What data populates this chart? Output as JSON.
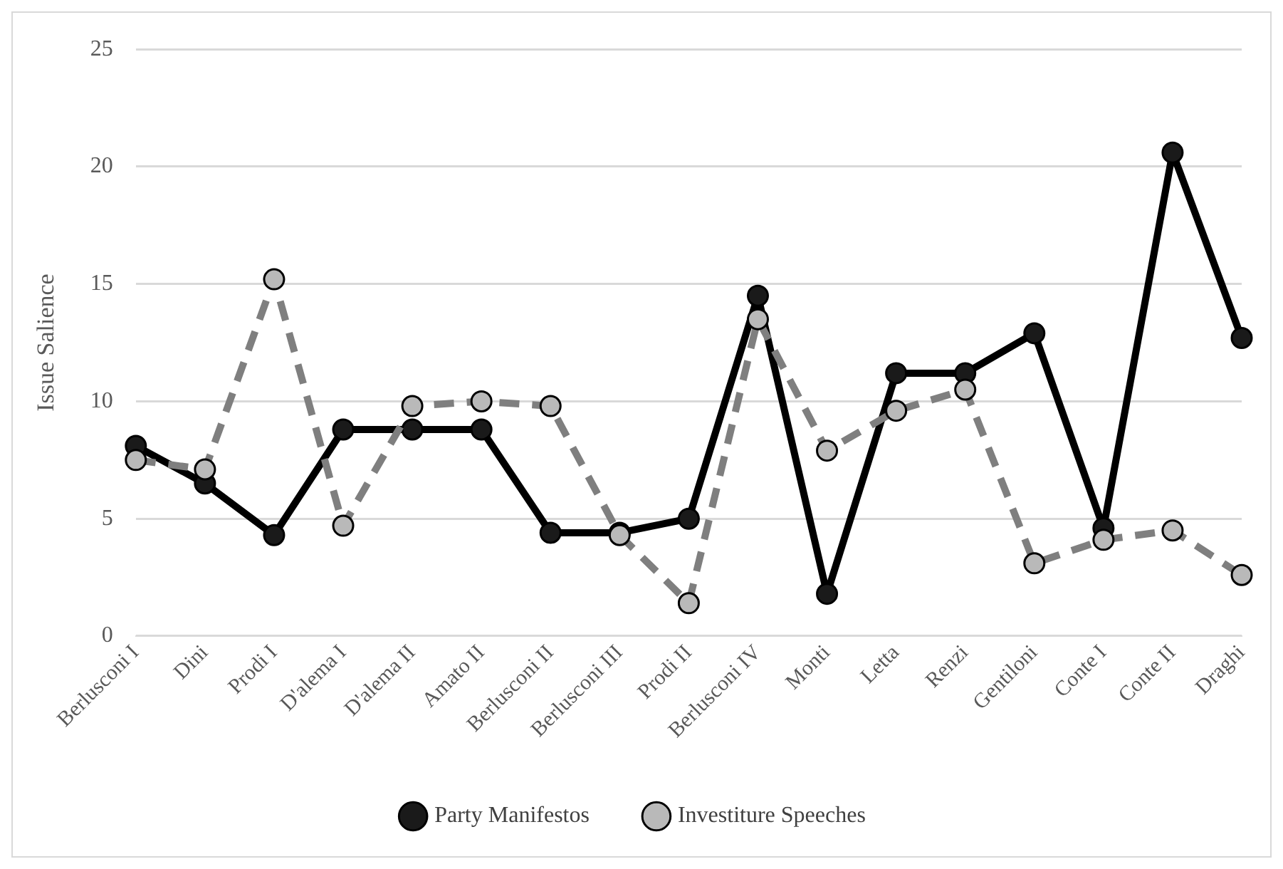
{
  "chart_data": {
    "type": "line",
    "ylabel": "Issue Salience",
    "categories": [
      "Berlusconi I",
      "Dini",
      "Prodi I",
      "D'alema I",
      "D'alema II",
      "Amato II",
      "Berlusconi II",
      "Berlusconi III",
      "Prodi II",
      "Berlusconi IV",
      "Monti",
      "Letta",
      "Renzi",
      "Gentiloni",
      "Conte I",
      "Conte II",
      "Draghi"
    ],
    "series": [
      {
        "name": "Party Manifestos",
        "color": "#000000",
        "line_style": "solid",
        "values": [
          8.1,
          6.5,
          4.3,
          8.8,
          8.8,
          8.8,
          4.4,
          4.4,
          5.0,
          14.5,
          1.8,
          11.2,
          11.2,
          12.9,
          4.6,
          20.6,
          12.7
        ]
      },
      {
        "name": "Investiture Speeches",
        "color": "#7f7f7f",
        "line_style": "dashed",
        "values": [
          7.5,
          7.1,
          15.2,
          4.7,
          9.8,
          10.0,
          9.8,
          4.3,
          1.4,
          13.5,
          7.9,
          9.6,
          10.5,
          3.1,
          4.1,
          4.5,
          2.6
        ]
      }
    ],
    "ylim": [
      0,
      25
    ],
    "yticks": [
      0,
      5,
      10,
      15,
      20,
      25
    ],
    "grid": "y",
    "legend": "bottom",
    "marker": "circle"
  }
}
